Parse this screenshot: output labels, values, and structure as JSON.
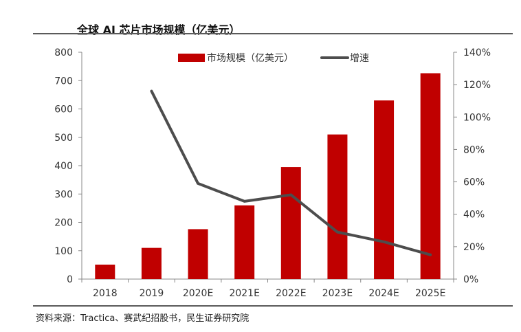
{
  "title": "全球 AI 芯片市场规模（亿美元）",
  "source": "资料来源：Tractica、赛武纪招股书，民生证券研究院",
  "colors": {
    "bar": "#C00000",
    "line": "#4D4D4D"
  },
  "chart_data": {
    "type": "bar",
    "categories": [
      "2018",
      "2019",
      "2020E",
      "2021E",
      "2022E",
      "2023E",
      "2024E",
      "2025E"
    ],
    "series": [
      {
        "name": "市场规模（亿美元）",
        "type": "bar",
        "axis": "left",
        "values": [
          51,
          110,
          176,
          260,
          395,
          510,
          630,
          726
        ]
      },
      {
        "name": "增速",
        "type": "line",
        "axis": "right",
        "values": [
          null,
          116,
          59,
          48,
          52,
          29,
          23,
          15
        ]
      }
    ],
    "yleft": {
      "lim": [
        0,
        800
      ],
      "ticks": [
        "0",
        "100",
        "200",
        "300",
        "400",
        "500",
        "600",
        "700",
        "800"
      ]
    },
    "yright": {
      "lim": [
        0,
        140
      ],
      "ticks": [
        "0%",
        "20%",
        "40%",
        "60%",
        "80%",
        "100%",
        "120%",
        "140%"
      ]
    },
    "legend": [
      "市场规模（亿美元）",
      "增速"
    ],
    "legend_position": "top",
    "grid": false
  }
}
